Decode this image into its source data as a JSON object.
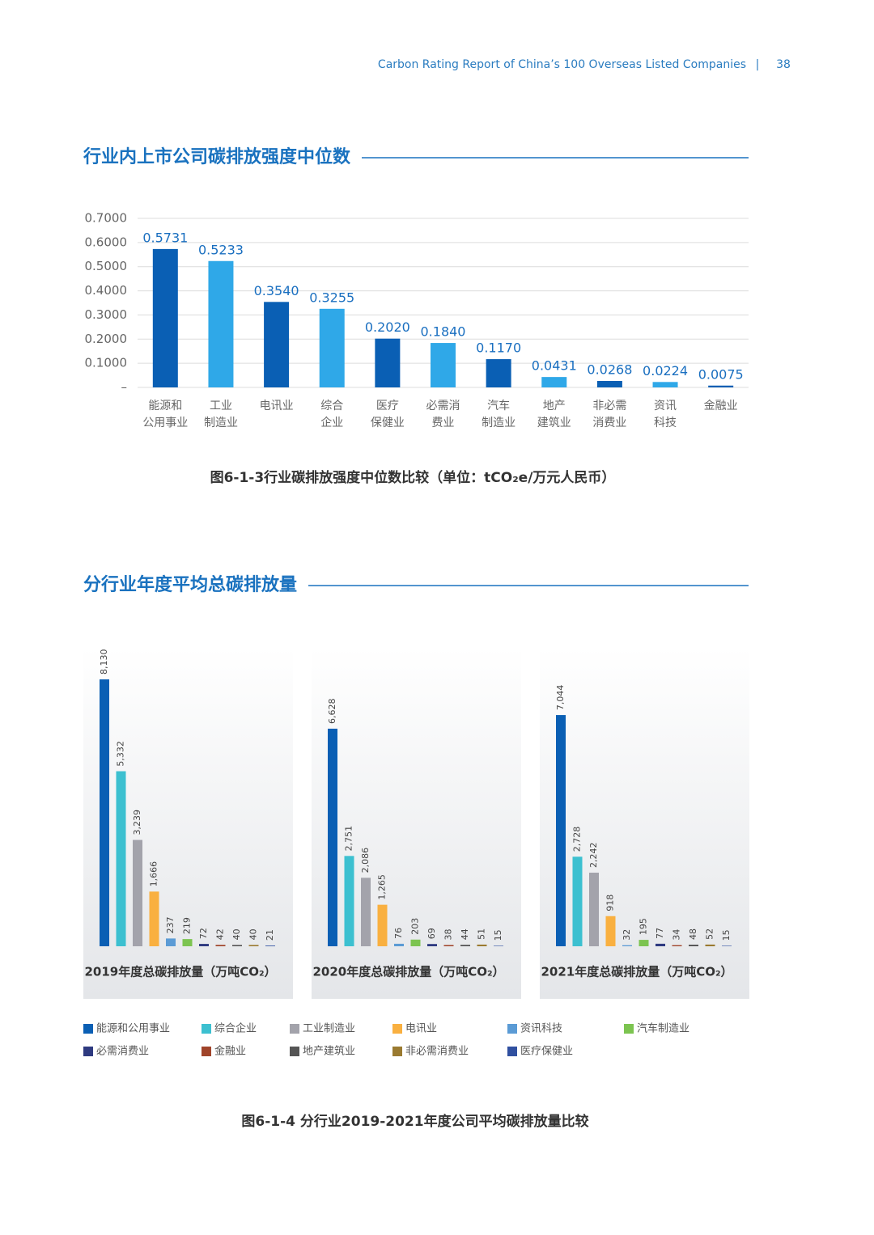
{
  "header": {
    "report": "Carbon Rating Report of China’s 100 Overseas Listed Companies",
    "page": "38"
  },
  "chart_data": [
    {
      "type": "bar",
      "title": "行业内上市公司碳排放强度中位数",
      "categories": [
        [
          "能源和",
          "公用事业"
        ],
        [
          "工业",
          "制造业"
        ],
        [
          "电讯业"
        ],
        [
          "综合",
          "企业"
        ],
        [
          "医疗",
          "保健业"
        ],
        [
          "必需消",
          "费业"
        ],
        [
          "汽车",
          "制造业"
        ],
        [
          "地产",
          "建筑业"
        ],
        [
          "非必需",
          "消费业"
        ],
        [
          "资讯",
          "科技"
        ],
        [
          "金融业"
        ]
      ],
      "values": [
        0.5731,
        0.5233,
        0.354,
        0.3255,
        0.202,
        0.184,
        0.117,
        0.0431,
        0.0268,
        0.0224,
        0.0075
      ],
      "value_labels": [
        "0.5731",
        "0.5233",
        "0.3540",
        "0.3255",
        "0.2020",
        "0.1840",
        "0.1170",
        "0.0431",
        "0.0268",
        "0.0224",
        "0.0075"
      ],
      "colors": [
        "#0a5fb4",
        "#2fa8e8",
        "#0a5fb4",
        "#2fa8e8",
        "#0a5fb4",
        "#2fa8e8",
        "#0a5fb4",
        "#2fa8e8",
        "#0a5fb4",
        "#2fa8e8",
        "#0a5fb4"
      ],
      "ylim": [
        0,
        0.7
      ],
      "yticks": [
        {
          "value": 0,
          "label": "–"
        },
        {
          "value": 0.1,
          "label": "0.1000"
        },
        {
          "value": 0.2,
          "label": "0.2000"
        },
        {
          "value": 0.3,
          "label": "0.3000"
        },
        {
          "value": 0.4,
          "label": "0.4000"
        },
        {
          "value": 0.5,
          "label": "0.5000"
        },
        {
          "value": 0.6,
          "label": "0.6000"
        },
        {
          "value": 0.7,
          "label": "0.7000"
        }
      ],
      "grid": true,
      "caption": "图6-1-3行业碳排放强度中位数比较（单位：tCO₂e/万元人民币）"
    },
    {
      "type": "bar",
      "title": "分行业年度平均总碳排放量",
      "categories": [
        "能源和公用事业",
        "综合企业",
        "工业制造业",
        "电讯业",
        "资讯科技",
        "汽车制造业",
        "必需消费业",
        "金融业",
        "地产建筑业",
        "非必需消费业",
        "医疗保健业"
      ],
      "colors": [
        "#0a5fb4",
        "#3cc0d0",
        "#a3a3ab",
        "#f9b040",
        "#5b9bd5",
        "#7cc450",
        "#2e3a80",
        "#a0442a",
        "#555555",
        "#9a7a30",
        "#3050a0"
      ],
      "series": [
        {
          "name": "2019年度总碳排放量（万吨CO₂）",
          "values": [
            8130,
            5332,
            3239,
            1666,
            237,
            219,
            72,
            42,
            40,
            40,
            21
          ],
          "value_labels": [
            "8,130",
            "5,332",
            "3,239",
            "1,666",
            "237",
            "219",
            "72",
            "42",
            "40",
            "40",
            "21"
          ]
        },
        {
          "name": "2020年度总碳排放量（万吨CO₂）",
          "values": [
            6628,
            2751,
            2086,
            1265,
            76,
            203,
            69,
            38,
            44,
            51,
            15
          ],
          "value_labels": [
            "6,628",
            "2,751",
            "2,086",
            "1,265",
            "76",
            "203",
            "69",
            "38",
            "44",
            "51",
            "15"
          ]
        },
        {
          "name": "2021年度总碳排放量（万吨CO₂）",
          "values": [
            7044,
            2728,
            2242,
            918,
            32,
            195,
            77,
            34,
            48,
            52,
            15
          ],
          "value_labels": [
            "7,044",
            "2,728",
            "2,242",
            "918",
            "32",
            "195",
            "77",
            "34",
            "48",
            "52",
            "15"
          ]
        }
      ],
      "caption": "图6-1-4 分行业2019-2021年度公司平均碳排放量比较"
    }
  ]
}
